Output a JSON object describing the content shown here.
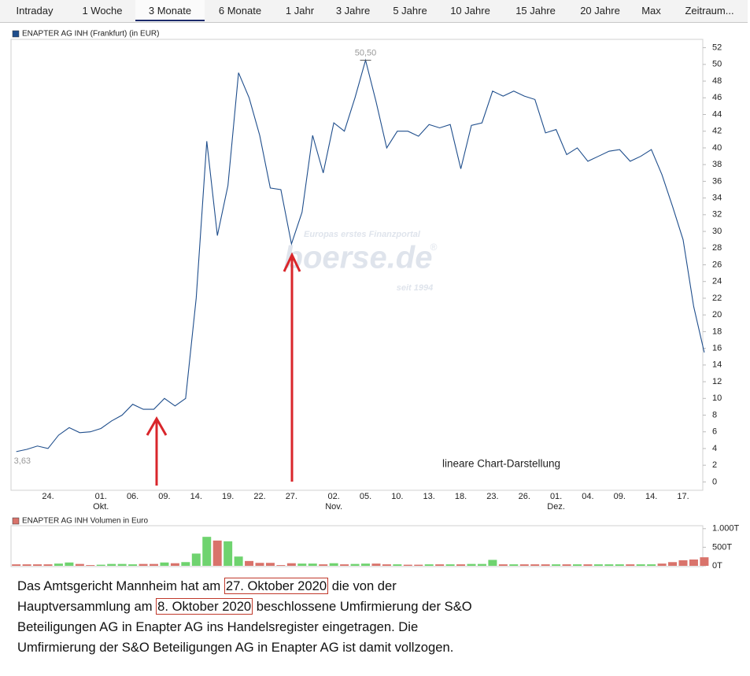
{
  "tabs": [
    "Intraday",
    "1 Woche",
    "3 Monate",
    "6 Monate",
    "1 Jahr",
    "3 Jahre",
    "5 Jahre",
    "10 Jahre",
    "15 Jahre",
    "20 Jahre",
    "Max",
    "Zeitraum..."
  ],
  "active_tab": 2,
  "watermark": {
    "tagline": "Europas erstes Finanzportal",
    "brand": "boerse.de",
    "mark": "®",
    "since": "seit 1994"
  },
  "chart_data": [
    {
      "type": "line",
      "annotation": "lineare Chart-Darstellung",
      "categories": [
        null,
        null,
        null,
        "24.",
        null,
        null,
        null,
        null,
        "01.",
        null,
        null,
        "06.",
        null,
        null,
        "09.",
        null,
        null,
        "14.",
        null,
        null,
        "19.",
        null,
        null,
        "22.",
        null,
        null,
        "27.",
        null,
        null,
        null,
        "02.",
        null,
        null,
        "05.",
        null,
        null,
        "10.",
        null,
        null,
        "13.",
        null,
        null,
        "18.",
        null,
        null,
        "23.",
        null,
        null,
        "26.",
        null,
        null,
        "01.",
        null,
        null,
        "04.",
        null,
        null,
        "09.",
        null,
        null,
        "14.",
        null,
        null,
        "17.",
        null,
        null
      ],
      "category_sublabels": [
        null,
        null,
        null,
        null,
        null,
        null,
        null,
        null,
        "Okt.",
        null,
        null,
        null,
        null,
        null,
        null,
        null,
        null,
        null,
        null,
        null,
        null,
        null,
        null,
        null,
        null,
        null,
        null,
        null,
        null,
        null,
        "Nov.",
        null,
        null,
        null,
        null,
        null,
        null,
        null,
        null,
        null,
        null,
        null,
        null,
        null,
        null,
        null,
        null,
        null,
        null,
        null,
        null,
        "Dez.",
        null,
        null,
        null,
        null,
        null,
        null,
        null,
        null,
        null,
        null,
        null,
        null,
        null,
        null
      ],
      "series": [
        {
          "name": "ENAPTER AG INH (Frankfurt) (in EUR)",
          "color": "#1f4e8c",
          "values": [
            3.63,
            3.9,
            4.3,
            4.0,
            5.6,
            6.5,
            5.9,
            6.0,
            6.4,
            7.3,
            8.0,
            9.3,
            8.7,
            8.7,
            10.0,
            9.1,
            10.0,
            22.0,
            40.8,
            29.5,
            35.5,
            49.0,
            46.0,
            41.5,
            35.2,
            35.0,
            28.5,
            32.3,
            41.5,
            37.0,
            43.0,
            42.0,
            46.0,
            50.5,
            45.5,
            40.0,
            42.0,
            42.0,
            41.4,
            42.8,
            42.4,
            42.8,
            37.5,
            42.7,
            43.0,
            46.8,
            46.2,
            46.8,
            46.2,
            45.8,
            41.8,
            42.2,
            39.2,
            40.0,
            38.4,
            39.0,
            39.6,
            39.8,
            38.4,
            39.0,
            39.8,
            36.8,
            33.0,
            29.0,
            21.0,
            15.5
          ],
          "value_labels": [
            "3,63",
            null,
            null,
            null,
            null,
            null,
            null,
            null,
            null,
            null,
            null,
            null,
            null,
            null,
            null,
            null,
            null,
            null,
            null,
            null,
            null,
            null,
            null,
            null,
            null,
            null,
            null,
            null,
            null,
            null,
            null,
            null,
            null,
            "50,50",
            null,
            null,
            null,
            null,
            null,
            null,
            null,
            null,
            null,
            null,
            null,
            null,
            null,
            null,
            null,
            null,
            null,
            null,
            null,
            null,
            null,
            null,
            null,
            null,
            null,
            null,
            null,
            null,
            null,
            null,
            null,
            null
          ]
        }
      ],
      "ylim": [
        -1,
        53
      ],
      "yticks": [
        0,
        2,
        4,
        6,
        8,
        10,
        12,
        14,
        16,
        18,
        20,
        22,
        24,
        26,
        28,
        30,
        32,
        34,
        36,
        38,
        40,
        42,
        44,
        46,
        48,
        50,
        52
      ],
      "grid": false
    },
    {
      "type": "bar",
      "series": [
        {
          "name": "ENAPTER AG INH Volumen in Euro",
          "color": "#d9736b",
          "values": [
            40,
            40,
            40,
            40,
            60,
            90,
            50,
            20,
            30,
            50,
            50,
            40,
            50,
            50,
            90,
            70,
            100,
            330,
            780,
            680,
            660,
            250,
            130,
            80,
            80,
            20,
            70,
            60,
            60,
            40,
            70,
            40,
            50,
            60,
            60,
            40,
            40,
            30,
            30,
            40,
            40,
            40,
            40,
            50,
            50,
            160,
            40,
            40,
            40,
            40,
            40,
            40,
            40,
            40,
            40,
            40,
            40,
            40,
            40,
            40,
            40,
            60,
            100,
            150,
            170,
            230
          ],
          "colors": [
            "#d9736b",
            "#d9736b",
            "#d9736b",
            "#d9736b",
            "#6fd36f",
            "#6fd36f",
            "#d9736b",
            "#d9736b",
            "#6fd36f",
            "#6fd36f",
            "#6fd36f",
            "#6fd36f",
            "#d9736b",
            "#d9736b",
            "#6fd36f",
            "#d9736b",
            "#6fd36f",
            "#6fd36f",
            "#6fd36f",
            "#d9736b",
            "#6fd36f",
            "#6fd36f",
            "#d9736b",
            "#d9736b",
            "#d9736b",
            "#d9736b",
            "#d9736b",
            "#6fd36f",
            "#6fd36f",
            "#d9736b",
            "#6fd36f",
            "#d9736b",
            "#6fd36f",
            "#6fd36f",
            "#d9736b",
            "#d9736b",
            "#6fd36f",
            "#d9736b",
            "#d9736b",
            "#6fd36f",
            "#d9736b",
            "#6fd36f",
            "#d9736b",
            "#6fd36f",
            "#6fd36f",
            "#6fd36f",
            "#d9736b",
            "#6fd36f",
            "#d9736b",
            "#d9736b",
            "#d9736b",
            "#6fd36f",
            "#d9736b",
            "#6fd36f",
            "#d9736b",
            "#6fd36f",
            "#6fd36f",
            "#6fd36f",
            "#d9736b",
            "#6fd36f",
            "#6fd36f",
            "#d9736b",
            "#d9736b",
            "#d9736b",
            "#d9736b",
            "#d9736b"
          ]
        }
      ],
      "ylim": [
        0,
        1080
      ],
      "yticks": [
        {
          "value": 0,
          "label": "0T"
        },
        {
          "value": 500,
          "label": "500T"
        },
        {
          "value": 1000,
          "label": "1.000T"
        }
      ]
    }
  ],
  "caption": {
    "lines": [
      [
        {
          "text": "Das Amtsgericht Mannheim hat am ",
          "boxed": false
        },
        {
          "text": "27. Oktober 2020",
          "boxed": true
        },
        {
          "text": " die von der",
          "boxed": false
        }
      ],
      [
        {
          "text": "Hauptversammlung am ",
          "boxed": false
        },
        {
          "text": "8. Oktober 2020",
          "boxed": true
        },
        {
          "text": " beschlossene Umfirmierung der S&O",
          "boxed": false
        }
      ],
      [
        {
          "text": "Beteiligungen AG in Enapter AG ins Handelsregister eingetragen. Die",
          "boxed": false
        }
      ],
      [
        {
          "text": "Umfirmierung der S&O Beteiligungen AG in Enapter AG ist damit vollzogen.",
          "boxed": false
        }
      ]
    ]
  }
}
